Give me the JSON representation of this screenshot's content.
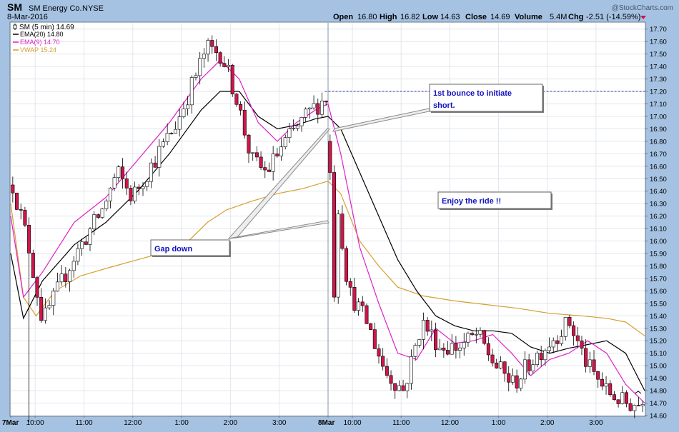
{
  "header": {
    "symbol": "SM",
    "company": "SM Energy Co.",
    "exchange": "NYSE",
    "date": "8-Mar-2016",
    "watermark": "@StockCharts.com",
    "quote": {
      "open_label": "Open",
      "open": "16.80",
      "high_label": "High",
      "high": "16.82",
      "low_label": "Low",
      "low": "14.63",
      "close_label": "Close",
      "close": "14.69",
      "volume_label": "Volume",
      "volume": "5.4M",
      "chg_label": "Chg",
      "chg": "-2.51 (-14.59%)"
    }
  },
  "legend": [
    {
      "label": "SM (5 min) 14.69",
      "color": "#000000",
      "marker": "candle"
    },
    {
      "label": "EMA(20) 14.80",
      "color": "#000000",
      "marker": "line"
    },
    {
      "label": "EMA(9) 14.70",
      "color": "#e020c8",
      "marker": "line"
    },
    {
      "label": "VWAP 15.24",
      "color": "#d4a032",
      "marker": "line"
    }
  ],
  "colors": {
    "up_candle": "#ffffff",
    "down_candle": "#d0154a",
    "ema20": "#000000",
    "ema9": "#e020c8",
    "vwap": "#d4a032",
    "annotation_text": "#1010c0",
    "resistance_line": "#2a3ab0",
    "page_bg": "#a5c2e2"
  },
  "annotations": [
    {
      "id": "bounce",
      "lines": [
        "1st bounce to initiate",
        "short."
      ]
    },
    {
      "id": "ride",
      "lines": [
        "Enjoy the ride !!"
      ]
    },
    {
      "id": "gap",
      "lines": [
        "Gap down"
      ]
    }
  ],
  "chart_data": {
    "type": "candlestick",
    "title": "SM (5 min)",
    "x_tick_labels": [
      "7Mar",
      "10:00",
      "11:00",
      "12:00",
      "1:00",
      "2:00",
      "3:00",
      "8Mar",
      "10:00",
      "11:00",
      "12:00",
      "1:00",
      "2:00",
      "3:00"
    ],
    "y_ticks": [
      14.6,
      14.7,
      14.8,
      14.9,
      15.0,
      15.1,
      15.2,
      15.3,
      15.4,
      15.5,
      15.6,
      15.7,
      15.8,
      15.9,
      16.0,
      16.1,
      16.2,
      16.3,
      16.4,
      16.5,
      16.6,
      16.7,
      16.8,
      16.9,
      17.0,
      17.1,
      17.2,
      17.3,
      17.4,
      17.5,
      17.6,
      17.7
    ],
    "ylim": [
      14.6,
      17.75
    ],
    "grid": true,
    "resistance_level": 17.2,
    "candle_groups": [
      {
        "session": "7Mar",
        "bars": 78,
        "path": [
          [
            16.45,
            14.55
          ],
          [
            16.0,
            15.2
          ],
          [
            15.35,
            15.3
          ],
          [
            15.6,
            15.55
          ],
          [
            15.85,
            15.85
          ],
          [
            16.05,
            16.15
          ],
          [
            16.25,
            16.35
          ],
          [
            16.55,
            16.6
          ],
          [
            16.35,
            16.3
          ],
          [
            16.55,
            16.5
          ],
          [
            16.75,
            16.75
          ],
          [
            16.95,
            16.9
          ],
          [
            17.25,
            17.4
          ],
          [
            17.55,
            17.65
          ],
          [
            17.5,
            17.45
          ],
          [
            17.15,
            17.15
          ],
          [
            16.65,
            16.6
          ],
          [
            16.55,
            16.5
          ],
          [
            16.75,
            16.8
          ],
          [
            16.9,
            17.0
          ],
          [
            17.05,
            17.1
          ],
          [
            17.15,
            17.2
          ]
        ]
      },
      {
        "session": "8Mar",
        "bars": 78,
        "path": [
          [
            16.8,
            16.55
          ],
          [
            15.6,
            15.7
          ],
          [
            15.35,
            15.1
          ],
          [
            14.95,
            14.8
          ],
          [
            14.8,
            14.9
          ],
          [
            15.35,
            15.4
          ],
          [
            15.15,
            15.15
          ],
          [
            15.15,
            15.2
          ],
          [
            15.25,
            15.25
          ],
          [
            15.0,
            14.95
          ],
          [
            14.85,
            14.8
          ],
          [
            15.05,
            15.1
          ],
          [
            15.2,
            15.25
          ],
          [
            15.35,
            15.3
          ],
          [
            15.0,
            14.9
          ],
          [
            14.8,
            14.75
          ],
          [
            14.7,
            14.67
          ],
          [
            14.69,
            14.69
          ]
        ]
      }
    ],
    "ema20_path": [
      [
        0.0,
        15.9
      ],
      [
        0.04,
        15.38
      ],
      [
        0.1,
        15.68
      ],
      [
        0.2,
        15.97
      ],
      [
        0.3,
        16.15
      ],
      [
        0.4,
        16.4
      ],
      [
        0.5,
        16.7
      ],
      [
        0.6,
        17.05
      ],
      [
        0.66,
        17.2
      ],
      [
        0.72,
        17.2
      ],
      [
        0.78,
        17.0
      ],
      [
        0.84,
        16.9
      ],
      [
        0.9,
        16.93
      ],
      [
        0.96,
        16.98
      ],
      [
        1.0,
        17.0
      ],
      [
        1.04,
        16.9
      ],
      [
        1.1,
        16.55
      ],
      [
        1.16,
        16.2
      ],
      [
        1.22,
        15.85
      ],
      [
        1.28,
        15.6
      ],
      [
        1.34,
        15.4
      ],
      [
        1.4,
        15.32
      ],
      [
        1.46,
        15.28
      ],
      [
        1.52,
        15.28
      ],
      [
        1.58,
        15.26
      ],
      [
        1.64,
        15.15
      ],
      [
        1.7,
        15.1
      ],
      [
        1.76,
        15.14
      ],
      [
        1.82,
        15.17
      ],
      [
        1.88,
        15.2
      ],
      [
        1.94,
        15.1
      ],
      [
        2.0,
        14.8
      ]
    ],
    "ema9_path": [
      [
        0.0,
        16.2
      ],
      [
        0.04,
        15.55
      ],
      [
        0.1,
        15.75
      ],
      [
        0.2,
        16.15
      ],
      [
        0.3,
        16.35
      ],
      [
        0.4,
        16.65
      ],
      [
        0.5,
        16.95
      ],
      [
        0.6,
        17.3
      ],
      [
        0.66,
        17.45
      ],
      [
        0.72,
        17.3
      ],
      [
        0.78,
        16.95
      ],
      [
        0.84,
        16.8
      ],
      [
        0.9,
        16.95
      ],
      [
        0.96,
        17.05
      ],
      [
        1.0,
        17.1
      ],
      [
        1.04,
        16.7
      ],
      [
        1.1,
        15.95
      ],
      [
        1.16,
        15.5
      ],
      [
        1.22,
        15.1
      ],
      [
        1.28,
        15.05
      ],
      [
        1.34,
        15.3
      ],
      [
        1.4,
        15.18
      ],
      [
        1.46,
        15.2
      ],
      [
        1.52,
        15.25
      ],
      [
        1.58,
        15.1
      ],
      [
        1.64,
        14.92
      ],
      [
        1.7,
        15.05
      ],
      [
        1.76,
        15.1
      ],
      [
        1.82,
        15.2
      ],
      [
        1.88,
        15.1
      ],
      [
        1.94,
        14.85
      ],
      [
        2.0,
        14.7
      ]
    ],
    "vwap_path": [
      [
        0.0,
        16.3
      ],
      [
        0.04,
        15.55
      ],
      [
        0.08,
        15.4
      ],
      [
        0.14,
        15.6
      ],
      [
        0.22,
        15.72
      ],
      [
        0.3,
        15.78
      ],
      [
        0.4,
        15.85
      ],
      [
        0.5,
        15.92
      ],
      [
        0.56,
        16.0
      ],
      [
        0.62,
        16.15
      ],
      [
        0.68,
        16.25
      ],
      [
        0.76,
        16.32
      ],
      [
        0.84,
        16.38
      ],
      [
        0.92,
        16.42
      ],
      [
        1.0,
        16.48
      ],
      [
        1.04,
        16.38
      ],
      [
        1.1,
        16.0
      ],
      [
        1.16,
        15.8
      ],
      [
        1.22,
        15.63
      ],
      [
        1.3,
        15.56
      ],
      [
        1.4,
        15.52
      ],
      [
        1.5,
        15.49
      ],
      [
        1.6,
        15.46
      ],
      [
        1.7,
        15.42
      ],
      [
        1.8,
        15.4
      ],
      [
        1.88,
        15.38
      ],
      [
        1.94,
        15.35
      ],
      [
        2.0,
        15.24
      ]
    ]
  }
}
